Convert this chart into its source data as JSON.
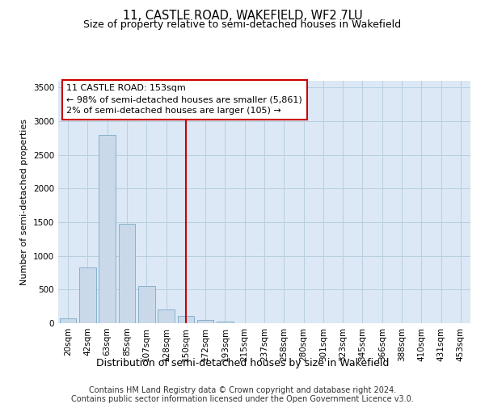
{
  "title": "11, CASTLE ROAD, WAKEFIELD, WF2 7LU",
  "subtitle": "Size of property relative to semi-detached houses in Wakefield",
  "xlabel": "Distribution of semi-detached houses by size in Wakefield",
  "ylabel": "Number of semi-detached properties",
  "footer_line1": "Contains HM Land Registry data © Crown copyright and database right 2024.",
  "footer_line2": "Contains public sector information licensed under the Open Government Licence v3.0.",
  "annotation_title": "11 CASTLE ROAD: 153sqm",
  "annotation_line1": "← 98% of semi-detached houses are smaller (5,861)",
  "annotation_line2": "2% of semi-detached houses are larger (105) →",
  "bar_color": "#c9d9ea",
  "bar_edge_color": "#7aaac8",
  "vline_color": "#cc0000",
  "annotation_box_edgecolor": "#cc0000",
  "annotation_box_facecolor": "#ffffff",
  "background_color": "#ffffff",
  "plot_bg_color": "#dce8f5",
  "grid_color": "#b8cfe0",
  "categories": [
    "20sqm",
    "42sqm",
    "63sqm",
    "85sqm",
    "107sqm",
    "128sqm",
    "150sqm",
    "172sqm",
    "193sqm",
    "215sqm",
    "237sqm",
    "258sqm",
    "280sqm",
    "301sqm",
    "323sqm",
    "345sqm",
    "366sqm",
    "388sqm",
    "410sqm",
    "431sqm",
    "453sqm"
  ],
  "values": [
    75,
    830,
    2800,
    1480,
    555,
    200,
    105,
    50,
    28,
    5,
    2,
    0,
    0,
    0,
    0,
    0,
    0,
    0,
    0,
    0,
    0
  ],
  "ylim": [
    0,
    3600
  ],
  "yticks": [
    0,
    500,
    1000,
    1500,
    2000,
    2500,
    3000,
    3500
  ],
  "vline_x_index": 6,
  "title_fontsize": 10.5,
  "subtitle_fontsize": 9,
  "ylabel_fontsize": 8,
  "xlabel_fontsize": 9,
  "tick_fontsize": 7.5,
  "annotation_fontsize": 8,
  "footer_fontsize": 7
}
